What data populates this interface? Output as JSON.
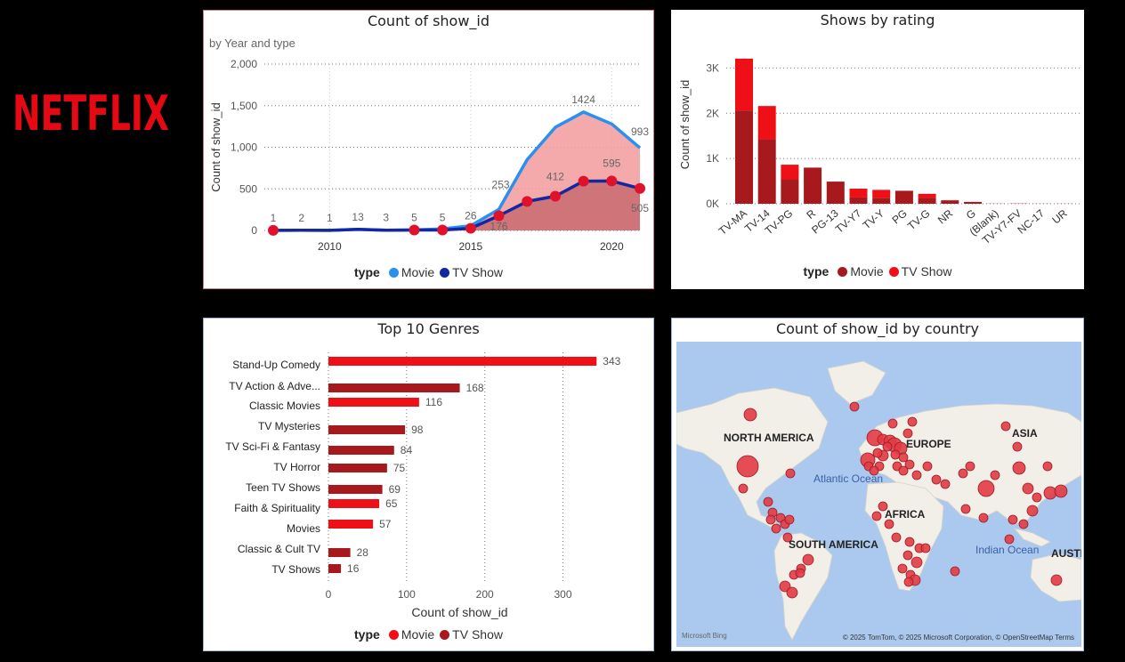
{
  "brand": {
    "logo_text": "NETFLIX",
    "logo_color": "#e50914"
  },
  "colors": {
    "movie_blue": "#2b8ff0",
    "tvshow_navy": "#1328a0",
    "movie_red": "#ee0f17",
    "tvshow_darkred": "#a7191c"
  },
  "panel1": {
    "title": "Count of show_id",
    "subtitle": "by Year and type",
    "legend_title": "type",
    "legend": [
      "Movie",
      "TV Show"
    ]
  },
  "panel2": {
    "title": "Shows by rating",
    "legend_title": "type",
    "legend": [
      "Movie",
      "TV Show"
    ]
  },
  "panel3": {
    "title": "Top 10 Genres",
    "legend_title": "type",
    "legend": [
      "Movie",
      "TV Show"
    ]
  },
  "panel4": {
    "title": "Count of show_id by country",
    "labels": [
      "NORTH AMERICA",
      "EUROPE",
      "ASIA",
      "AFRICA",
      "SOUTH AMERICA",
      "Atlantic Ocean",
      "Indian Ocean",
      "AUSTI"
    ],
    "attribution": "© 2025 TomTom, © 2025 Microsoft Corporation, © OpenStreetMap Terms",
    "bing": "Microsoft Bing"
  },
  "chart_data": [
    {
      "type": "line",
      "title": "Count of show_id",
      "subtitle": "by Year and type",
      "xlabel": "",
      "ylabel": "Count of show_id",
      "x_ticks": [
        "2010",
        "2015",
        "2020"
      ],
      "y_ticks": [
        "0",
        "500",
        "1,000",
        "1,500",
        "2,000"
      ],
      "ylim": [
        0,
        2000
      ],
      "xlim": [
        2008,
        2021
      ],
      "series": [
        {
          "name": "Movie",
          "x": [
            2008,
            2009,
            2010,
            2011,
            2012,
            2013,
            2014,
            2015,
            2016,
            2017,
            2018,
            2019,
            2020,
            2021
          ],
          "values": [
            1,
            2,
            1,
            13,
            3,
            6,
            19,
            56,
            253,
            850,
            1240,
            1424,
            1280,
            993
          ]
        },
        {
          "name": "TV Show",
          "x": [
            2008,
            2009,
            2010,
            2011,
            2012,
            2013,
            2014,
            2015,
            2016,
            2017,
            2018,
            2019,
            2020,
            2021
          ],
          "values": [
            1,
            2,
            1,
            13,
            3,
            5,
            5,
            26,
            176,
            349,
            412,
            592,
            595,
            505
          ]
        }
      ],
      "data_labels": [
        {
          "x": 2008,
          "y": 1,
          "text": "1"
        },
        {
          "x": 2009,
          "y": 2,
          "text": "2"
        },
        {
          "x": 2010,
          "y": 1,
          "text": "1"
        },
        {
          "x": 2011,
          "y": 13,
          "text": "13"
        },
        {
          "x": 2012,
          "y": 3,
          "text": "3"
        },
        {
          "x": 2013,
          "y": 5,
          "text": "5"
        },
        {
          "x": 2014,
          "y": 5,
          "text": "5"
        },
        {
          "x": 2015,
          "y": 26,
          "text": "26"
        },
        {
          "x": 2016,
          "y": 253,
          "text": "253"
        },
        {
          "x": 2016,
          "y": 176,
          "text": "176"
        },
        {
          "x": 2018,
          "y": 412,
          "text": "412"
        },
        {
          "x": 2019,
          "y": 1424,
          "text": "1424"
        },
        {
          "x": 2020,
          "y": 595,
          "text": "595"
        },
        {
          "x": 2021,
          "y": 993,
          "text": "993"
        },
        {
          "x": 2021,
          "y": 505,
          "text": "505"
        }
      ],
      "legend": "bottom"
    },
    {
      "type": "bar",
      "stacked": true,
      "title": "Shows by rating",
      "xlabel": "",
      "ylabel": "Count of show_id",
      "categories": [
        "TV-MA",
        "TV-14",
        "TV-PG",
        "R",
        "PG-13",
        "TV-Y7",
        "TV-Y",
        "PG",
        "TV-G",
        "NR",
        "G",
        "(Blank)",
        "TV-Y7-FV",
        "NC-17",
        "UR"
      ],
      "series": [
        {
          "name": "Movie",
          "values": [
            2062,
            1427,
            540,
            797,
            490,
            139,
            131,
            287,
            126,
            75,
            41,
            2,
            5,
            3,
            3
          ]
        },
        {
          "name": "TV Show",
          "values": [
            1145,
            733,
            323,
            2,
            0,
            195,
            176,
            0,
            94,
            5,
            0,
            2,
            1,
            0,
            0
          ]
        }
      ],
      "y_ticks": [
        "0K",
        "1K",
        "2K",
        "3K"
      ],
      "ylim": [
        0,
        3500
      ],
      "legend": "bottom"
    },
    {
      "type": "bar",
      "orientation": "horizontal",
      "title": "Top 10 Genres",
      "xlabel": "Count of show_id",
      "ylabel": "",
      "categories": [
        "Stand-Up Comedy",
        "TV Action & Adve...",
        "Classic Movies",
        "TV Mysteries",
        "TV Sci-Fi & Fantasy",
        "TV Horror",
        "Teen TV Shows",
        "Faith & Spirituality",
        "Movies",
        "Classic & Cult TV",
        "TV Shows"
      ],
      "values": [
        343,
        168,
        116,
        98,
        84,
        75,
        69,
        65,
        57,
        28,
        16
      ],
      "types": [
        "Movie",
        "TV Show",
        "Movie",
        "TV Show",
        "TV Show",
        "TV Show",
        "TV Show",
        "Movie",
        "Movie",
        "TV Show",
        "TV Show"
      ],
      "x_ticks": [
        "0",
        "100",
        "200",
        "300"
      ],
      "xlim": [
        0,
        370
      ],
      "legend": "bottom"
    }
  ]
}
